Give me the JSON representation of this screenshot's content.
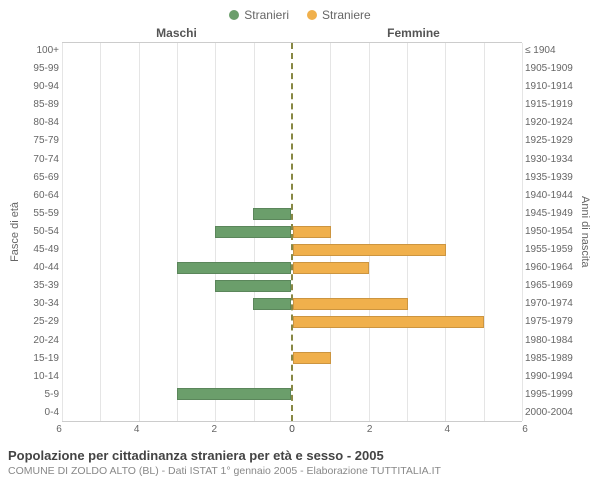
{
  "legend": {
    "male": {
      "label": "Stranieri",
      "color": "#6b9e6b"
    },
    "female": {
      "label": "Straniere",
      "color": "#f0b04c"
    }
  },
  "headers": {
    "male": "Maschi",
    "female": "Femmine"
  },
  "axis_labels": {
    "left": "Fasce di età",
    "right": "Anni di nascita"
  },
  "x_axis": {
    "max": 6,
    "ticks": [
      6,
      4,
      2,
      0,
      0,
      2,
      4,
      6
    ]
  },
  "title": "Popolazione per cittadinanza straniera per età e sesso - 2005",
  "subtitle": "COMUNE DI ZOLDO ALTO (BL) - Dati ISTAT 1° gennaio 2005 - Elaborazione TUTTITALIA.IT",
  "colors": {
    "grid": "#e5e5e5",
    "axis_dash": "#888844",
    "text": "#666666",
    "bg": "#ffffff"
  },
  "rows": [
    {
      "age": "100+",
      "birth": "≤ 1904",
      "m": 0,
      "f": 0
    },
    {
      "age": "95-99",
      "birth": "1905-1909",
      "m": 0,
      "f": 0
    },
    {
      "age": "90-94",
      "birth": "1910-1914",
      "m": 0,
      "f": 0
    },
    {
      "age": "85-89",
      "birth": "1915-1919",
      "m": 0,
      "f": 0
    },
    {
      "age": "80-84",
      "birth": "1920-1924",
      "m": 0,
      "f": 0
    },
    {
      "age": "75-79",
      "birth": "1925-1929",
      "m": 0,
      "f": 0
    },
    {
      "age": "70-74",
      "birth": "1930-1934",
      "m": 0,
      "f": 0
    },
    {
      "age": "65-69",
      "birth": "1935-1939",
      "m": 0,
      "f": 0
    },
    {
      "age": "60-64",
      "birth": "1940-1944",
      "m": 0,
      "f": 0
    },
    {
      "age": "55-59",
      "birth": "1945-1949",
      "m": 1,
      "f": 0
    },
    {
      "age": "50-54",
      "birth": "1950-1954",
      "m": 2,
      "f": 1
    },
    {
      "age": "45-49",
      "birth": "1955-1959",
      "m": 0,
      "f": 4
    },
    {
      "age": "40-44",
      "birth": "1960-1964",
      "m": 3,
      "f": 2
    },
    {
      "age": "35-39",
      "birth": "1965-1969",
      "m": 2,
      "f": 0
    },
    {
      "age": "30-34",
      "birth": "1970-1974",
      "m": 1,
      "f": 3
    },
    {
      "age": "25-29",
      "birth": "1975-1979",
      "m": 0,
      "f": 5
    },
    {
      "age": "20-24",
      "birth": "1980-1984",
      "m": 0,
      "f": 0
    },
    {
      "age": "15-19",
      "birth": "1985-1989",
      "m": 0,
      "f": 1
    },
    {
      "age": "10-14",
      "birth": "1990-1994",
      "m": 0,
      "f": 0
    },
    {
      "age": "5-9",
      "birth": "1995-1999",
      "m": 3,
      "f": 0
    },
    {
      "age": "0-4",
      "birth": "2000-2004",
      "m": 0,
      "f": 0
    }
  ]
}
